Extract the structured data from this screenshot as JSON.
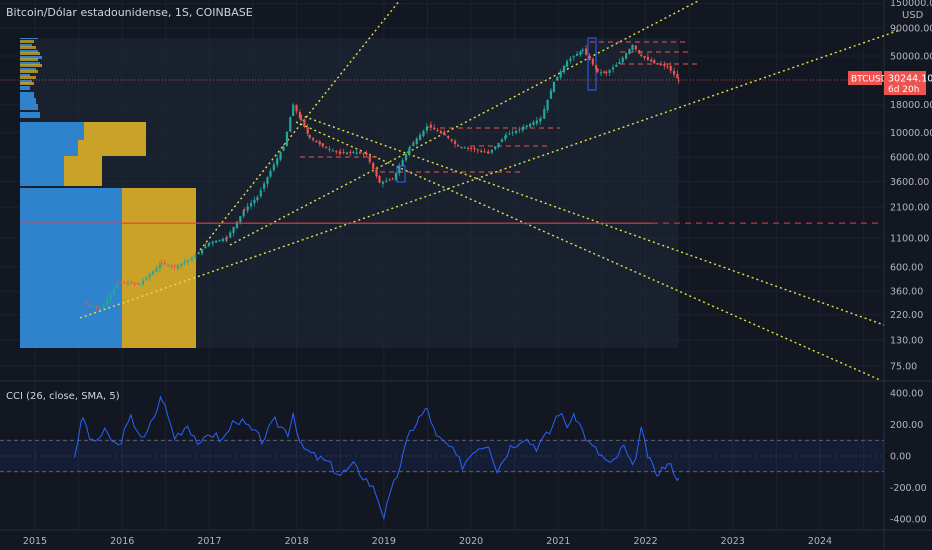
{
  "header": {
    "title": "Bitcoin/Dólar estadounidense, 1S, COINBASE",
    "currency": "USD"
  },
  "price_badge": {
    "symbol": "BTCUSD",
    "price": "30244.10",
    "countdown": "6d 20h"
  },
  "colors": {
    "background": "#131722",
    "up": "#26a69a",
    "down": "#ef5350",
    "cci_line": "#2962ff",
    "trendline": "#e6e04a",
    "volume_profile_blue": "#2f83cc",
    "volume_profile_gold": "#c9a227",
    "support_line": "#f23645"
  },
  "chart_data": [
    {
      "type": "line",
      "title": "Bitcoin/Dólar estadounidense, 1S, COINBASE",
      "y_scale": "log",
      "ylim": [
        60,
        150000
      ],
      "y_ticks": [
        "150000.00",
        "90000.00",
        "50000.00",
        "18000.00",
        "10000.00",
        "6000.00",
        "3600.00",
        "2100.00",
        "1100.00",
        "600.00",
        "360.00",
        "220.00",
        "130.00",
        "75.00"
      ],
      "x_ticks": [
        "2015",
        "2016",
        "2017",
        "2018",
        "2019",
        "2020",
        "2021",
        "2022",
        "2023",
        "2024"
      ],
      "series": [
        {
          "x": [
            2015.55,
            2015.75,
            2015.95,
            2016.2,
            2016.45,
            2016.6,
            2016.8,
            2017.0,
            2017.2,
            2017.4,
            2017.55,
            2017.7,
            2017.85,
            2017.96,
            2018.05,
            2018.15,
            2018.3,
            2018.5,
            2018.65,
            2018.8,
            2018.95,
            2019.1,
            2019.3,
            2019.5,
            2019.7,
            2019.85,
            2020.0,
            2020.2,
            2020.4,
            2020.6,
            2020.8,
            2020.95,
            2021.1,
            2021.28,
            2021.45,
            2021.55,
            2021.7,
            2021.85,
            2021.95,
            2022.1,
            2022.25,
            2022.38
          ],
          "y": [
            280,
            250,
            430,
            420,
            650,
            600,
            720,
            1000,
            1100,
            2000,
            2600,
            4500,
            7500,
            18000,
            13000,
            9000,
            7500,
            6500,
            6700,
            6300,
            3500,
            3800,
            7500,
            11500,
            9500,
            7500,
            7200,
            6500,
            9500,
            11200,
            13500,
            29000,
            45000,
            57000,
            36000,
            35000,
            44000,
            63000,
            50000,
            43000,
            40000,
            30244
          ]
        }
      ],
      "horizontal_line": 1500
    },
    {
      "type": "line",
      "title": "CCI (26, close, SMA, 5)",
      "ylim": [
        -450,
        450
      ],
      "y_ticks": [
        "400.00",
        "200.00",
        "0.00",
        "-200.00",
        "-400.00"
      ],
      "band": [
        -100,
        100
      ],
      "series": [
        {
          "x": [
            2015.45,
            2015.55,
            2015.65,
            2015.8,
            2015.95,
            2016.1,
            2016.25,
            2016.4,
            2016.45,
            2016.6,
            2016.75,
            2016.9,
            2017.0,
            2017.15,
            2017.3,
            2017.45,
            2017.6,
            2017.75,
            2017.9,
            2017.96,
            2018.05,
            2018.2,
            2018.35,
            2018.5,
            2018.65,
            2018.8,
            2018.9,
            2019.0,
            2019.15,
            2019.3,
            2019.4,
            2019.5,
            2019.6,
            2019.75,
            2019.9,
            2020.05,
            2020.2,
            2020.3,
            2020.45,
            2020.6,
            2020.75,
            2020.9,
            2021.0,
            2021.1,
            2021.2,
            2021.35,
            2021.5,
            2021.6,
            2021.75,
            2021.85,
            2021.95,
            2022.05,
            2022.15,
            2022.25,
            2022.38
          ],
          "y": [
            0,
            250,
            80,
            150,
            60,
            240,
            100,
            300,
            380,
            120,
            200,
            60,
            150,
            100,
            240,
            180,
            100,
            220,
            150,
            280,
            60,
            0,
            -40,
            -120,
            -60,
            -150,
            -220,
            -380,
            -120,
            150,
            240,
            300,
            120,
            60,
            -60,
            50,
            80,
            -90,
            60,
            120,
            60,
            150,
            280,
            200,
            250,
            80,
            0,
            -60,
            60,
            -80,
            160,
            -40,
            -130,
            -30,
            -140
          ]
        }
      ]
    }
  ]
}
